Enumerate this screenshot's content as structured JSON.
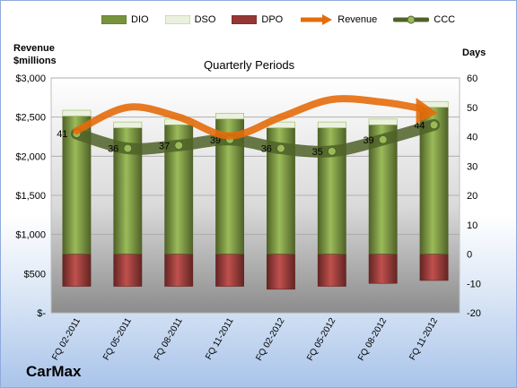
{
  "chart_data": {
    "type": "bar",
    "title": "Quarterly Periods",
    "ylabel_left": "Revenue\n$millions",
    "ylabel_right": "Days",
    "brand": "CarMax",
    "categories": [
      "FQ 02-2011",
      "FQ 05-2011",
      "FQ 08-2011",
      "FQ 11-2011",
      "FQ 02-2012",
      "FQ 05-2012",
      "FQ 08-2012",
      "FQ 11-2012"
    ],
    "left_axis": {
      "min": 0,
      "max": 3000,
      "step": 500,
      "ticks": [
        "$-",
        "$500",
        "$1,000",
        "$1,500",
        "$2,000",
        "$2,500",
        "$3,000"
      ]
    },
    "right_axis": {
      "min": -20,
      "max": 60,
      "step": 10,
      "ticks": [
        "-20",
        "-10",
        "0",
        "10",
        "20",
        "30",
        "40",
        "50",
        "60"
      ]
    },
    "series": [
      {
        "name": "DIO",
        "type": "stacked-bar",
        "axis": "right",
        "color": "#77933c",
        "values": [
          47,
          43,
          44,
          46,
          43,
          43,
          44,
          50
        ]
      },
      {
        "name": "DSO",
        "type": "stacked-bar",
        "axis": "right",
        "color": "#ebf1de",
        "values": [
          2,
          2,
          2,
          2,
          2,
          2,
          2,
          2
        ]
      },
      {
        "name": "DPO",
        "type": "negative-bar",
        "axis": "right",
        "color": "#953735",
        "values": [
          -11,
          -11,
          -11,
          -11,
          -12,
          -11,
          -10,
          -9
        ]
      },
      {
        "name": "Revenue",
        "type": "line",
        "axis": "left",
        "color": "#e46c0a",
        "values": [
          2325,
          2625,
          2500,
          2260,
          2500,
          2725,
          2690,
          2575
        ]
      },
      {
        "name": "CCC",
        "type": "line",
        "axis": "right",
        "color": "#4f6228",
        "values": [
          41,
          36,
          37,
          39,
          36,
          35,
          39,
          44
        ]
      }
    ],
    "data_labels": [
      "41",
      "36",
      "37",
      "39",
      "36",
      "35",
      "39",
      "44"
    ]
  }
}
